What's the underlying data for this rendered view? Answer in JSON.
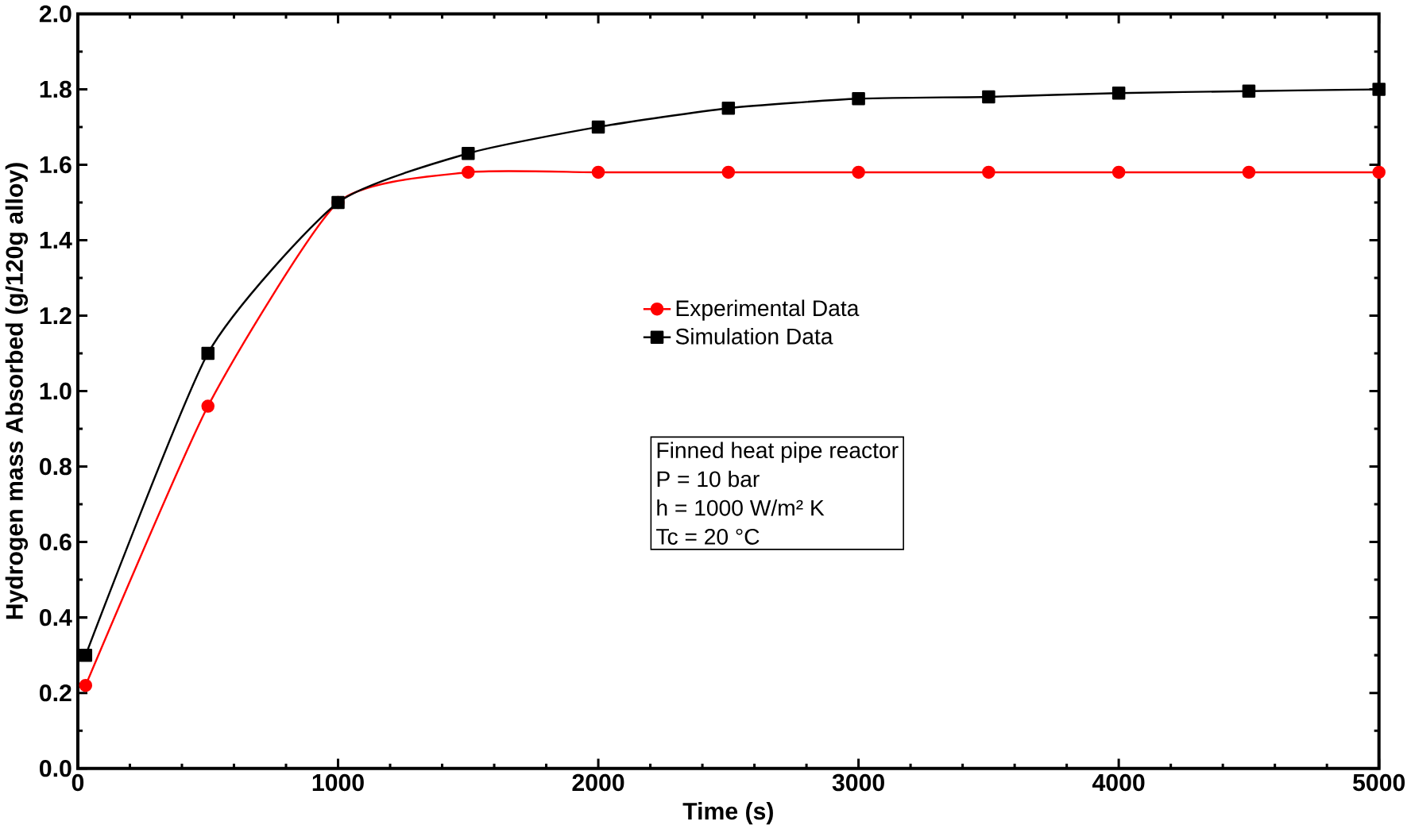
{
  "chart_data": {
    "type": "line",
    "xlabel": "Time (s)",
    "ylabel": "Hydrogen mass Absorbed (g/120g alloy)",
    "xlim": [
      0,
      5000
    ],
    "xticks": [
      0,
      1000,
      2000,
      3000,
      4000,
      5000
    ],
    "ylim": [
      0,
      2.0
    ],
    "yticks": [
      {
        "value": 0,
        "label": "0.0"
      },
      0.2,
      0.4,
      0.6,
      0.8,
      {
        "value": 1,
        "label": "1.0"
      },
      1.2,
      1.4,
      1.6,
      1.8,
      {
        "value": 2,
        "label": "2.0"
      }
    ],
    "legend": "right",
    "grid": false,
    "series": [
      {
        "name": "Experimental Data",
        "color": "#ff0000",
        "marker": "circle",
        "x": [
          30,
          500,
          1000,
          1500,
          2000,
          2500,
          3000,
          3500,
          4000,
          4500,
          5000
        ],
        "values": [
          0.22,
          0.96,
          1.5,
          1.58,
          1.58,
          1.58,
          1.58,
          1.58,
          1.58,
          1.58,
          1.58
        ]
      },
      {
        "name": "Simulation Data",
        "color": "#000000",
        "marker": "square",
        "x": [
          30,
          500,
          1000,
          1500,
          2000,
          2500,
          3000,
          3500,
          4000,
          4500,
          5000
        ],
        "values": [
          0.3,
          1.1,
          1.5,
          1.63,
          1.7,
          1.75,
          1.775,
          1.78,
          1.79,
          1.795,
          1.8
        ]
      }
    ],
    "annotations": [
      "Finned heat pipe reactor",
      "P = 10 bar",
      "h = 1000 W/m² K",
      "Tc = 20 °C"
    ]
  }
}
